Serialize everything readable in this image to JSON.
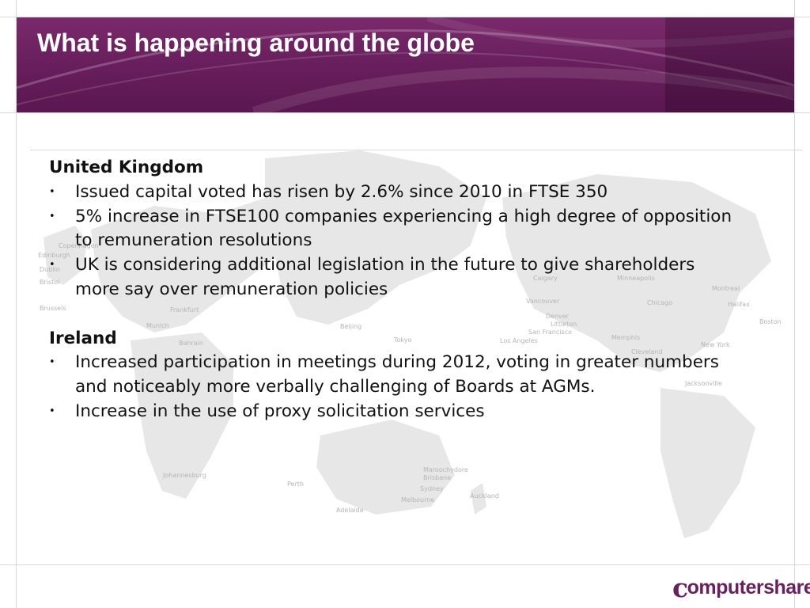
{
  "title": "What is happening around the globe",
  "sections": [
    {
      "heading": "United Kingdom",
      "bullets": [
        [
          "Issued capital voted has risen by 2.6% since 2010 in FTSE 350"
        ],
        [
          "5% increase in FTSE100 companies experiencing a high degree of opposition",
          "to remuneration resolutions"
        ],
        [
          "UK is considering additional legislation in the future to give shareholders",
          "more say over remuneration policies"
        ]
      ]
    },
    {
      "heading": "Ireland",
      "bullets": [
        [
          "Increased participation in meetings during 2012, voting in greater numbers",
          "and noticeably more verbally challenging of Boards at AGMs."
        ],
        [
          "Increase in the use of proxy solicitation services"
        ]
      ]
    }
  ],
  "bullet_glyph": "•",
  "map_labels": [
    "Edinburgh",
    "Copenhagen",
    "Dublin",
    "Bristol",
    "Brussels",
    "Frankfurt",
    "Munich",
    "Bahrain",
    "Beijing",
    "Tokyo",
    "Calgary",
    "Minneapolis",
    "Montreal",
    "Halifax",
    "Vancouver",
    "Chicago",
    "Denver",
    "Littleton",
    "San Francisco",
    "Los Angeles",
    "Memphis",
    "Boston",
    "New York",
    "Cleveland",
    "Jacksonville",
    "Johannesburg",
    "Perth",
    "Maroochydore",
    "Brisbane",
    "Sydney",
    "Melbourne",
    "Adelaide",
    "Auckland"
  ],
  "logo": {
    "initial": "c",
    "text": "omputershare"
  },
  "colors": {
    "header": "#6a1f5e",
    "title_text": "#ffffff",
    "body_text": "#111111",
    "brand": "#6a1f5e"
  }
}
